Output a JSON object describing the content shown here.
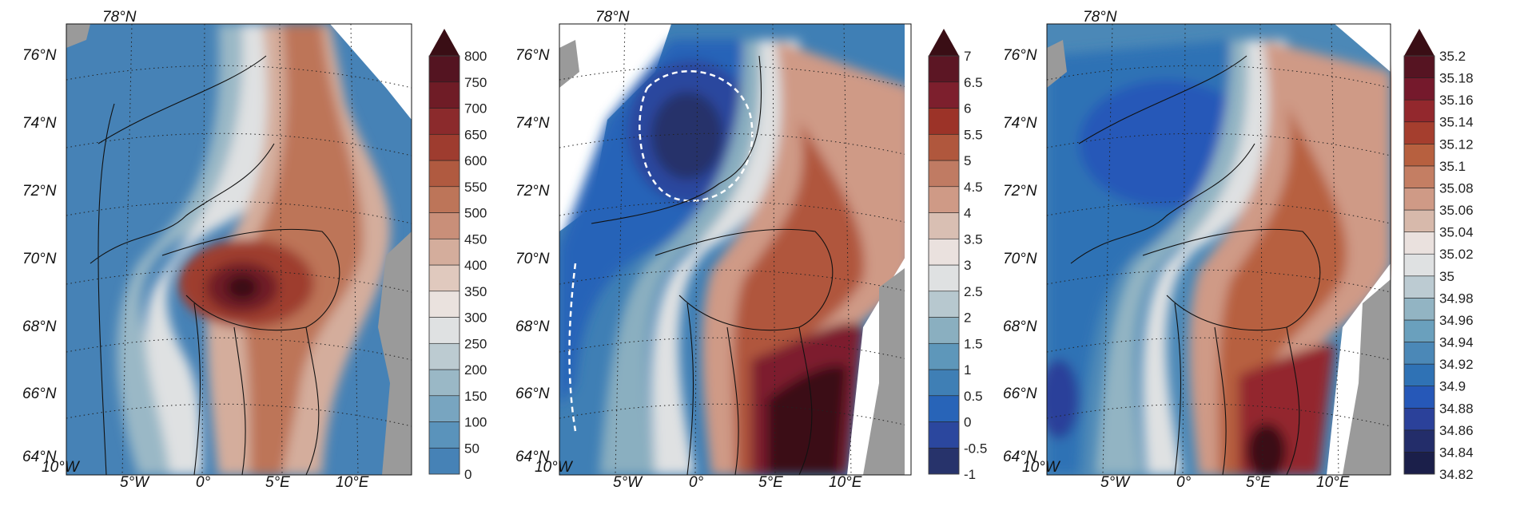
{
  "panels": [
    {
      "id": "panel-1",
      "lat_labels": [
        "78°N",
        "76°N",
        "74°N",
        "72°N",
        "70°N",
        "68°N",
        "66°N",
        "64°N"
      ],
      "lon_labels": [
        "10°W",
        "5°W",
        "0°",
        "5°E",
        "10°E"
      ],
      "colorbar": {
        "ticks": [
          "0",
          "50",
          "100",
          "150",
          "200",
          "250",
          "300",
          "350",
          "400",
          "450",
          "500",
          "550",
          "600",
          "650",
          "700",
          "750",
          "800"
        ],
        "colors": [
          "#4682b6",
          "#5a93bb",
          "#78a5c0",
          "#9ab8c6",
          "#bccbd1",
          "#dfe1e2",
          "#eae2de",
          "#e0c9be",
          "#d4ad9c",
          "#c98f79",
          "#bd7559",
          "#b05a40",
          "#9e3c2f",
          "#8b2a2c",
          "#6f1c26",
          "#541421"
        ],
        "extend_color": "#3a0e15"
      }
    },
    {
      "id": "panel-2",
      "lat_labels": [
        "78°N",
        "76°N",
        "74°N",
        "72°N",
        "70°N",
        "68°N",
        "66°N",
        "64°N"
      ],
      "lon_labels": [
        "10°W",
        "5°W",
        "0°",
        "5°E",
        "10°E"
      ],
      "colorbar": {
        "ticks": [
          "-1",
          "-0.5",
          "0",
          "0.5",
          "1",
          "1.5",
          "2",
          "2.5",
          "3",
          "3.5",
          "4",
          "4.5",
          "5",
          "5.5",
          "6",
          "6.5",
          "7"
        ],
        "colors": [
          "#27336b",
          "#2b479e",
          "#2864b8",
          "#3f7fb5",
          "#5e97ba",
          "#8aafc0",
          "#b7c8cf",
          "#dfe1e2",
          "#eae1de",
          "#d9bfb3",
          "#cf9a86",
          "#c07b63",
          "#b0573d",
          "#9c3328",
          "#7d1f2d",
          "#5c1624"
        ],
        "extend_color": "#3a0e15"
      }
    },
    {
      "id": "panel-3",
      "lat_labels": [
        "78°N",
        "76°N",
        "74°N",
        "72°N",
        "70°N",
        "68°N",
        "66°N",
        "64°N"
      ],
      "lon_labels": [
        "10°W",
        "5°W",
        "0°",
        "5°E",
        "10°E"
      ],
      "colorbar": {
        "ticks": [
          "34.82",
          "34.84",
          "34.86",
          "34.88",
          "34.9",
          "34.92",
          "34.94",
          "34.96",
          "34.98",
          "35",
          "35.02",
          "35.04",
          "35.06",
          "35.08",
          "35.1",
          "35.12",
          "35.14",
          "35.16",
          "35.18",
          "35.2"
        ],
        "colors": [
          "#1b1f4a",
          "#232d6a",
          "#2b419a",
          "#2658b8",
          "#2f72b5",
          "#4b88b7",
          "#6aa0bd",
          "#92b4c3",
          "#bccbd2",
          "#dfe1e2",
          "#eae1de",
          "#d7b9ab",
          "#cf9a86",
          "#c47e63",
          "#b7603f",
          "#a53e2e",
          "#93282d",
          "#75192c",
          "#561422"
        ],
        "extend_color": "#3a0e15"
      }
    }
  ],
  "chart_data": [
    {
      "type": "heatmap",
      "title": "",
      "xlabel": "",
      "ylabel": "",
      "x_ticks": [
        "10°W",
        "5°W",
        "0°",
        "5°E",
        "10°E"
      ],
      "y_ticks": [
        "64°N",
        "66°N",
        "68°N",
        "70°N",
        "72°N",
        "74°N",
        "76°N",
        "78°N"
      ],
      "colorbar_range": [
        0,
        800
      ],
      "colorbar_step": 50
    },
    {
      "type": "heatmap",
      "title": "",
      "xlabel": "",
      "ylabel": "",
      "x_ticks": [
        "10°W",
        "5°W",
        "0°",
        "5°E",
        "10°E"
      ],
      "y_ticks": [
        "64°N",
        "66°N",
        "68°N",
        "70°N",
        "72°N",
        "74°N",
        "76°N",
        "78°N"
      ],
      "colorbar_range": [
        -1,
        7
      ],
      "colorbar_step": 0.5
    },
    {
      "type": "heatmap",
      "title": "",
      "xlabel": "",
      "ylabel": "",
      "x_ticks": [
        "10°W",
        "5°W",
        "0°",
        "5°E",
        "10°E"
      ],
      "y_ticks": [
        "64°N",
        "66°N",
        "68°N",
        "70°N",
        "72°N",
        "74°N",
        "76°N",
        "78°N"
      ],
      "colorbar_range": [
        34.82,
        35.2
      ],
      "colorbar_step": 0.02
    }
  ]
}
